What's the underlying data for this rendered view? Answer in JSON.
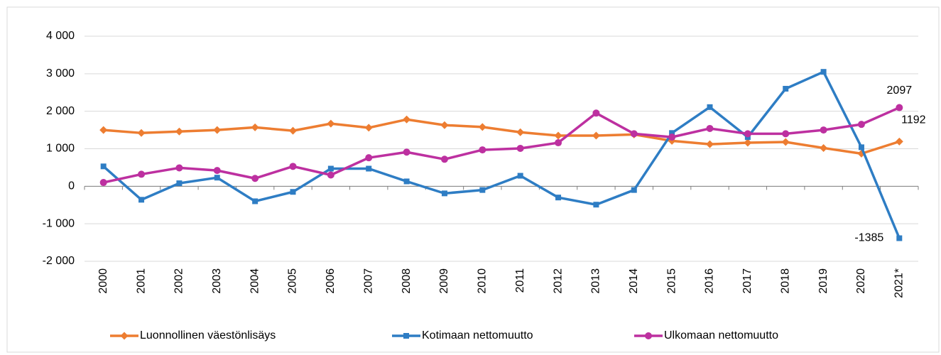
{
  "chart_data": {
    "type": "line",
    "categories": [
      "2000",
      "2001",
      "2002",
      "2003",
      "2004",
      "2005",
      "2006",
      "2007",
      "2008",
      "2009",
      "2010",
      "2011",
      "2012",
      "2013",
      "2014",
      "2015",
      "2016",
      "2017",
      "2018",
      "2019",
      "2020",
      "2021*"
    ],
    "series": [
      {
        "name": "Luonnollinen väestönlisäys",
        "color": "#ed7d31",
        "marker": "diamond",
        "values": [
          1500,
          1420,
          1460,
          1500,
          1570,
          1480,
          1670,
          1560,
          1780,
          1630,
          1580,
          1440,
          1350,
          1350,
          1380,
          1210,
          1120,
          1160,
          1180,
          1020,
          870,
          1192
        ]
      },
      {
        "name": "Kotimaan nettomuutto",
        "color": "#2e7dc4",
        "marker": "square",
        "values": [
          530,
          -360,
          80,
          230,
          -400,
          -150,
          470,
          470,
          130,
          -190,
          -100,
          280,
          -300,
          -490,
          -100,
          1420,
          2110,
          1310,
          2600,
          3050,
          1040,
          -1385
        ]
      },
      {
        "name": "Ulkomaan nettomuutto",
        "color": "#bd30a0",
        "marker": "circle",
        "values": [
          100,
          320,
          490,
          420,
          210,
          530,
          300,
          760,
          910,
          720,
          970,
          1010,
          1160,
          1950,
          1400,
          1310,
          1540,
          1400,
          1400,
          1500,
          1650,
          2097
        ]
      }
    ],
    "ylim": [
      -2000,
      4000
    ],
    "yticks": [
      {
        "value": -2000,
        "label": "-2 000"
      },
      {
        "value": -1000,
        "label": "-1 000"
      },
      0,
      {
        "value": 1000,
        "label": "1 000"
      },
      {
        "value": 2000,
        "label": "2 000"
      },
      {
        "value": 3000,
        "label": "3 000"
      },
      {
        "value": 4000,
        "label": "4 000"
      }
    ],
    "grid": true,
    "legend": "bottom"
  }
}
